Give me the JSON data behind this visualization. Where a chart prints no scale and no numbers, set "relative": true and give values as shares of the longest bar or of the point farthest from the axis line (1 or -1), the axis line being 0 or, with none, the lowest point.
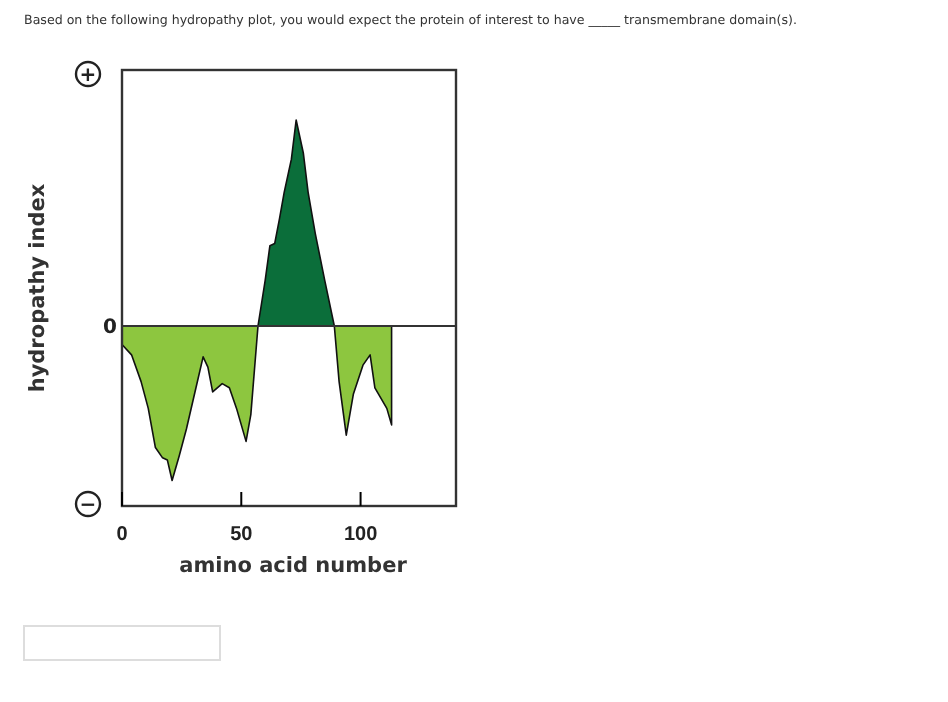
{
  "chart_data": {
    "type": "area",
    "relative": true,
    "title": "Based on the following hydropathy plot, you would expect the protein of interest to have _____ transmembrane domain(s).",
    "xlabel": "amino acid number",
    "ylabel": "hydropathy index",
    "xlim": [
      0,
      140
    ],
    "xticks": [
      0,
      50,
      100
    ],
    "annotations": [
      "+",
      "0",
      "−"
    ],
    "series": [
      {
        "color": "#8dc63f",
        "x": [
          0,
          4,
          8,
          11,
          14,
          17,
          19,
          21,
          24,
          27,
          31,
          34,
          36,
          38,
          42,
          45,
          48,
          52,
          54,
          57
        ],
        "values": [
          -0.09,
          -0.14,
          -0.27,
          -0.4,
          -0.59,
          -0.64,
          -0.65,
          -0.75,
          -0.63,
          -0.5,
          -0.3,
          -0.15,
          -0.2,
          -0.32,
          -0.28,
          -0.3,
          -0.4,
          -0.56,
          -0.43,
          0
        ]
      },
      {
        "color": "#8dc63f",
        "x": [
          89,
          91,
          94,
          97,
          101,
          104,
          106,
          111,
          113,
          113
        ],
        "values": [
          0,
          -0.27,
          -0.53,
          -0.33,
          -0.19,
          -0.14,
          -0.3,
          -0.4,
          -0.48,
          0
        ]
      },
      {
        "color": "#0b6e3a",
        "x": [
          57,
          60,
          62,
          64,
          66,
          68,
          71,
          73,
          76,
          78,
          81,
          85,
          89
        ],
        "values": [
          0,
          0.22,
          0.39,
          0.4,
          0.52,
          0.65,
          0.81,
          1,
          0.84,
          0.65,
          0.45,
          0.22,
          0
        ]
      }
    ]
  }
}
